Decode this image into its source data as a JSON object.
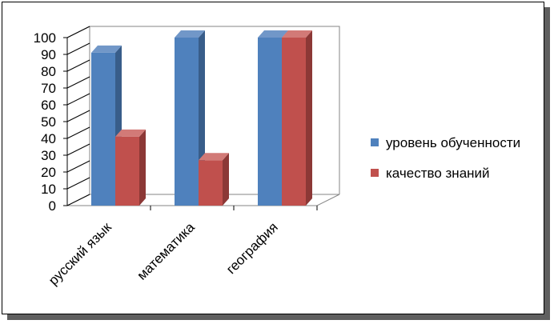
{
  "chart_data": {
    "type": "bar",
    "categories": [
      "русский язык",
      "математика",
      "география"
    ],
    "series": [
      {
        "name": "уровень обученности",
        "values": [
          91,
          100,
          100
        ],
        "color": "#4f81bd",
        "side_color": "#385d8a",
        "top_color": "#7197c8"
      },
      {
        "name": "качество знаний",
        "values": [
          41,
          27,
          100
        ],
        "color": "#c0504d",
        "side_color": "#8c3836",
        "top_color": "#d27a77"
      }
    ],
    "ylim": [
      0,
      100
    ],
    "ticks": [
      "0",
      "10",
      "20",
      "30",
      "40",
      "50",
      "60",
      "70",
      "80",
      "90",
      "100"
    ],
    "legend_position": "right",
    "grid": false,
    "three_d": true
  }
}
